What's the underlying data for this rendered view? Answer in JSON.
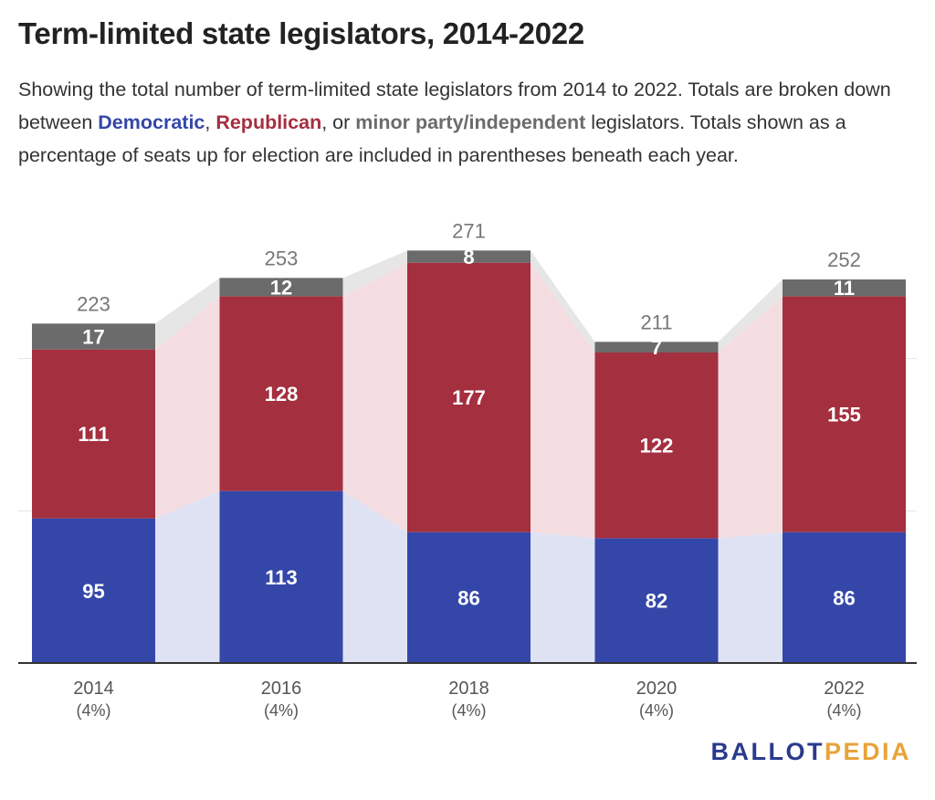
{
  "title": "Term-limited state legislators, 2014-2022",
  "subtitle": {
    "part1": "Showing the total number of term-limited state legislators from 2014 to 2022. Totals are broken down between ",
    "democratic": "Democratic",
    "comma1": ", ",
    "republican": "Republican",
    "part2": ", or ",
    "minor": "minor party/independent",
    "part3": " legislators. Totals shown as a percentage of seats up for election are included in parentheses beneath each year."
  },
  "colors": {
    "democratic": "#3447a9",
    "republican": "#a42f3f",
    "minor": "#6b6b6b",
    "dem_band": "#dfe2f3",
    "rep_band": "#f4dde0",
    "minor_band": "#e6e6e6",
    "total_label": "#777777",
    "logo_primary": "#2a3a8c",
    "logo_accent": "#e8a33a"
  },
  "chart_data": {
    "type": "bar",
    "stacked": true,
    "categories": [
      "2014",
      "2016",
      "2018",
      "2020",
      "2022"
    ],
    "category_sublabels": [
      "(4%)",
      "(4%)",
      "(4%)",
      "(4%)",
      "(4%)"
    ],
    "series": [
      {
        "name": "Democratic",
        "values": [
          95,
          113,
          86,
          82,
          86
        ]
      },
      {
        "name": "Republican",
        "values": [
          111,
          128,
          177,
          122,
          155
        ]
      },
      {
        "name": "minor party/independent",
        "values": [
          17,
          12,
          8,
          7,
          11
        ]
      }
    ],
    "totals": [
      223,
      253,
      271,
      211,
      252
    ],
    "ylim": [
      0,
      300
    ],
    "grid": true
  },
  "logo": {
    "part1": "BALLOT",
    "part2": "PEDIA"
  }
}
